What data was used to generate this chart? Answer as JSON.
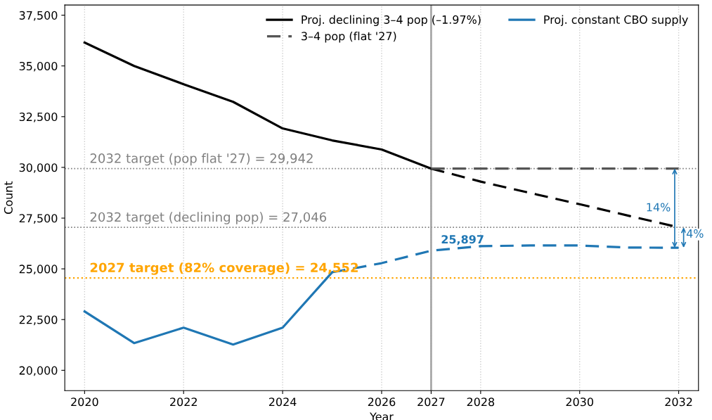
{
  "chart_data": {
    "type": "line",
    "xlabel": "Year",
    "ylabel": "Count",
    "xlim": [
      2019.6,
      2032.4
    ],
    "xticks": [
      2020,
      2022,
      2024,
      2026,
      2027,
      2028,
      2030,
      2032
    ],
    "ylim": [
      19000,
      38000
    ],
    "yticks": [
      {
        "value": 20000,
        "label": "20,000"
      },
      {
        "value": 22500,
        "label": "22,500"
      },
      {
        "value": 25000,
        "label": "25,000"
      },
      {
        "value": 27500,
        "label": "27,500"
      },
      {
        "value": 30000,
        "label": "30,000"
      },
      {
        "value": 32500,
        "label": "32,500"
      },
      {
        "value": 35000,
        "label": "35,000"
      },
      {
        "value": 37500,
        "label": "37,500"
      }
    ],
    "grid": "x",
    "legend": "top right",
    "marker": "none",
    "series": [
      {
        "name": "Proj. declining 3–4 pop (–1.97%)",
        "color": "#000000",
        "line_style": "solid",
        "x": [
          2020,
          2021,
          2022,
          2023,
          2024,
          2025,
          2026,
          2027
        ],
        "values": [
          36150,
          35000,
          34100,
          33230,
          31920,
          31330,
          30880,
          29942
        ]
      },
      {
        "color": "#000000",
        "line_style": "dashed",
        "x": [
          2027,
          2028,
          2029,
          2030,
          2031,
          2032
        ],
        "values": [
          29942,
          29300,
          28740,
          28185,
          27610,
          27046
        ]
      },
      {
        "name": "3–4 pop (flat '27)",
        "color": "#555555",
        "line_style": "dashed",
        "x": [
          2027,
          2032
        ],
        "values": [
          29942,
          29942
        ]
      },
      {
        "name": "Proj. constant CBO supply",
        "color": "#1f77b4",
        "line_style": "solid",
        "x": [
          2020,
          2021,
          2022,
          2023,
          2024,
          2025
        ],
        "values": [
          22900,
          21340,
          22100,
          21270,
          22100,
          24830
        ]
      },
      {
        "color": "#1f77b4",
        "line_style": "dashed",
        "x": [
          2025,
          2026,
          2027,
          2028,
          2029,
          2030,
          2031,
          2032
        ],
        "values": [
          24830,
          25280,
          25897,
          26120,
          26150,
          26150,
          26050,
          26040
        ]
      }
    ],
    "ref_lines": [
      {
        "axis": "y",
        "value": 29942,
        "label": "2032 target (pop flat '27) = 29,942",
        "color": "#808080",
        "line_style": "dotted"
      },
      {
        "axis": "y",
        "value": 27046,
        "label": "2032 target (declining pop) = 27,046",
        "color": "#808080",
        "line_style": "dotted"
      },
      {
        "axis": "y",
        "value": 24552,
        "label": "2027 target (82% coverage) = 24,552",
        "color": "#ffa500",
        "line_style": "dotted"
      },
      {
        "axis": "x",
        "value": 2027,
        "color": "#a0a0a0",
        "line_style": "solid"
      }
    ],
    "annotations": [
      {
        "text": "25,897",
        "x": 2027,
        "y": 25897
      },
      "14%",
      "4%"
    ]
  }
}
